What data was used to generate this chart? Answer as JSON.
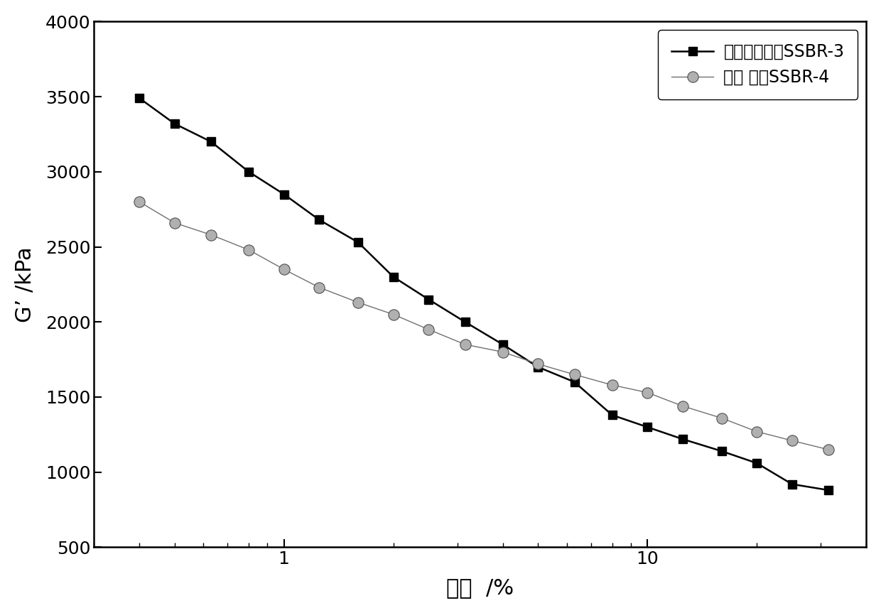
{
  "series1_label": "端基改性星形SSBR-3",
  "series2_label": "普通 星形SSBR-4",
  "series1_x": [
    0.4,
    0.5,
    0.63,
    0.8,
    1.0,
    1.25,
    1.6,
    2.0,
    2.5,
    3.15,
    4.0,
    5.0,
    6.3,
    8.0,
    10.0,
    12.5,
    16.0,
    20.0,
    25.0,
    31.5
  ],
  "series1_y": [
    3490,
    3320,
    3200,
    3000,
    2850,
    2680,
    2530,
    2300,
    2150,
    2000,
    1850,
    1700,
    1600,
    1380,
    1300,
    1220,
    1140,
    1060,
    920,
    880
  ],
  "series2_x": [
    0.4,
    0.5,
    0.63,
    0.8,
    1.0,
    1.25,
    1.6,
    2.0,
    2.5,
    3.15,
    4.0,
    5.0,
    6.3,
    8.0,
    10.0,
    12.5,
    16.0,
    20.0,
    25.0,
    31.5
  ],
  "series2_y": [
    2800,
    2660,
    2580,
    2480,
    2350,
    2230,
    2130,
    2050,
    1950,
    1850,
    1800,
    1720,
    1650,
    1580,
    1530,
    1440,
    1360,
    1270,
    1210,
    1150
  ],
  "xlabel": "形变  /%",
  "ylabel": "G’ /kPa",
  "xlim": [
    0.3,
    40
  ],
  "ylim": [
    500,
    4000
  ],
  "yticks": [
    500,
    1000,
    1500,
    2000,
    2500,
    3000,
    3500,
    4000
  ],
  "line1_color": "#000000",
  "line2_color": "#707070",
  "marker1": "s",
  "marker2": "o",
  "marker1_size": 9,
  "marker2_size": 11,
  "legend_fontsize": 17,
  "axis_label_fontsize": 22,
  "tick_label_fontsize": 18,
  "background_color": "#ffffff"
}
